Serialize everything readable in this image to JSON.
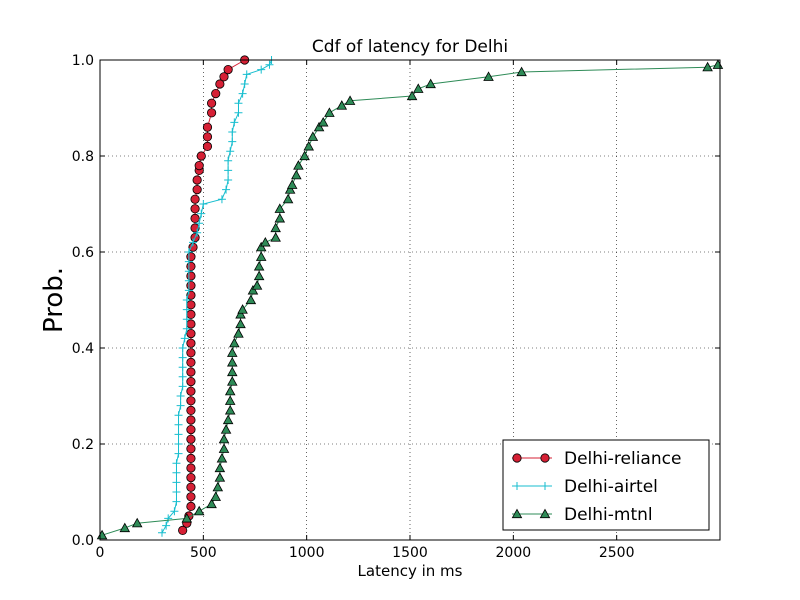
{
  "chart_data": {
    "type": "line",
    "title": "Cdf of latency for Delhi",
    "xlabel": "Latency in ms",
    "ylabel": "Prob.",
    "xlim": [
      0,
      3000
    ],
    "ylim": [
      0,
      1
    ],
    "xticks": [
      "0",
      "500",
      "1000",
      "1500",
      "2000",
      "2500"
    ],
    "yticks": [
      "0.0",
      "0.2",
      "0.4",
      "0.6",
      "0.8",
      "1.0"
    ],
    "xtick_values": [
      0,
      500,
      1000,
      1500,
      2000,
      2500
    ],
    "ytick_values": [
      0,
      0.2,
      0.4,
      0.6,
      0.8,
      1.0
    ],
    "grid": true,
    "legend_position": "bottom-right",
    "series": [
      {
        "name": "Delhi-reliance",
        "color": "#d62035",
        "marker": "circle",
        "points": [
          [
            400,
            0.02
          ],
          [
            420,
            0.035
          ],
          [
            430,
            0.05
          ],
          [
            440,
            0.07
          ],
          [
            440,
            0.09
          ],
          [
            440,
            0.11
          ],
          [
            440,
            0.13
          ],
          [
            440,
            0.15
          ],
          [
            440,
            0.17
          ],
          [
            440,
            0.19
          ],
          [
            440,
            0.21
          ],
          [
            440,
            0.23
          ],
          [
            440,
            0.25
          ],
          [
            440,
            0.27
          ],
          [
            440,
            0.29
          ],
          [
            440,
            0.31
          ],
          [
            440,
            0.33
          ],
          [
            440,
            0.35
          ],
          [
            440,
            0.37
          ],
          [
            440,
            0.39
          ],
          [
            440,
            0.41
          ],
          [
            440,
            0.43
          ],
          [
            440,
            0.45
          ],
          [
            440,
            0.47
          ],
          [
            440,
            0.49
          ],
          [
            440,
            0.51
          ],
          [
            440,
            0.53
          ],
          [
            440,
            0.55
          ],
          [
            440,
            0.57
          ],
          [
            440,
            0.59
          ],
          [
            450,
            0.61
          ],
          [
            460,
            0.63
          ],
          [
            460,
            0.65
          ],
          [
            460,
            0.67
          ],
          [
            460,
            0.69
          ],
          [
            460,
            0.71
          ],
          [
            470,
            0.73
          ],
          [
            470,
            0.75
          ],
          [
            480,
            0.77
          ],
          [
            480,
            0.78
          ],
          [
            490,
            0.8
          ],
          [
            520,
            0.82
          ],
          [
            520,
            0.84
          ],
          [
            520,
            0.86
          ],
          [
            540,
            0.89
          ],
          [
            540,
            0.91
          ],
          [
            560,
            0.93
          ],
          [
            580,
            0.95
          ],
          [
            600,
            0.965
          ],
          [
            620,
            0.98
          ],
          [
            700,
            1.0
          ]
        ]
      },
      {
        "name": "Delhi-airtel",
        "color": "#17becf",
        "marker": "plus",
        "points": [
          [
            300,
            0.015
          ],
          [
            320,
            0.03
          ],
          [
            330,
            0.045
          ],
          [
            360,
            0.06
          ],
          [
            370,
            0.08
          ],
          [
            370,
            0.1
          ],
          [
            370,
            0.12
          ],
          [
            370,
            0.14
          ],
          [
            370,
            0.16
          ],
          [
            380,
            0.18
          ],
          [
            380,
            0.2
          ],
          [
            380,
            0.22
          ],
          [
            380,
            0.24
          ],
          [
            380,
            0.26
          ],
          [
            390,
            0.28
          ],
          [
            390,
            0.3
          ],
          [
            400,
            0.32
          ],
          [
            400,
            0.34
          ],
          [
            400,
            0.36
          ],
          [
            400,
            0.38
          ],
          [
            400,
            0.4
          ],
          [
            410,
            0.42
          ],
          [
            420,
            0.44
          ],
          [
            420,
            0.46
          ],
          [
            420,
            0.48
          ],
          [
            420,
            0.5
          ],
          [
            430,
            0.52
          ],
          [
            430,
            0.54
          ],
          [
            430,
            0.56
          ],
          [
            430,
            0.58
          ],
          [
            430,
            0.6
          ],
          [
            450,
            0.62
          ],
          [
            470,
            0.64
          ],
          [
            480,
            0.66
          ],
          [
            490,
            0.68
          ],
          [
            500,
            0.7
          ],
          [
            590,
            0.71
          ],
          [
            610,
            0.73
          ],
          [
            620,
            0.75
          ],
          [
            620,
            0.77
          ],
          [
            620,
            0.79
          ],
          [
            630,
            0.81
          ],
          [
            640,
            0.83
          ],
          [
            640,
            0.85
          ],
          [
            650,
            0.87
          ],
          [
            670,
            0.89
          ],
          [
            670,
            0.91
          ],
          [
            690,
            0.93
          ],
          [
            700,
            0.95
          ],
          [
            710,
            0.97
          ],
          [
            780,
            0.98
          ],
          [
            820,
            0.99
          ],
          [
            830,
            1.0
          ]
        ]
      },
      {
        "name": "Delhi-mtnl",
        "color": "#2e8b57",
        "marker": "triangle",
        "points": [
          [
            10,
            0.01
          ],
          [
            120,
            0.025
          ],
          [
            180,
            0.035
          ],
          [
            420,
            0.045
          ],
          [
            480,
            0.06
          ],
          [
            540,
            0.075
          ],
          [
            560,
            0.09
          ],
          [
            570,
            0.11
          ],
          [
            580,
            0.13
          ],
          [
            580,
            0.15
          ],
          [
            590,
            0.17
          ],
          [
            600,
            0.19
          ],
          [
            600,
            0.21
          ],
          [
            610,
            0.23
          ],
          [
            620,
            0.25
          ],
          [
            630,
            0.27
          ],
          [
            630,
            0.29
          ],
          [
            630,
            0.31
          ],
          [
            640,
            0.33
          ],
          [
            640,
            0.35
          ],
          [
            640,
            0.37
          ],
          [
            640,
            0.39
          ],
          [
            650,
            0.41
          ],
          [
            670,
            0.43
          ],
          [
            680,
            0.45
          ],
          [
            680,
            0.47
          ],
          [
            690,
            0.48
          ],
          [
            730,
            0.5
          ],
          [
            740,
            0.52
          ],
          [
            760,
            0.53
          ],
          [
            770,
            0.55
          ],
          [
            770,
            0.57
          ],
          [
            780,
            0.59
          ],
          [
            780,
            0.61
          ],
          [
            800,
            0.62
          ],
          [
            850,
            0.63
          ],
          [
            850,
            0.65
          ],
          [
            870,
            0.67
          ],
          [
            870,
            0.69
          ],
          [
            910,
            0.71
          ],
          [
            920,
            0.73
          ],
          [
            930,
            0.74
          ],
          [
            950,
            0.76
          ],
          [
            960,
            0.78
          ],
          [
            990,
            0.8
          ],
          [
            1010,
            0.82
          ],
          [
            1030,
            0.84
          ],
          [
            1060,
            0.86
          ],
          [
            1080,
            0.87
          ],
          [
            1110,
            0.89
          ],
          [
            1170,
            0.905
          ],
          [
            1210,
            0.915
          ],
          [
            1510,
            0.925
          ],
          [
            1540,
            0.94
          ],
          [
            1600,
            0.95
          ],
          [
            1880,
            0.965
          ],
          [
            2040,
            0.975
          ],
          [
            2940,
            0.985
          ],
          [
            2990,
            0.99
          ]
        ]
      }
    ]
  }
}
